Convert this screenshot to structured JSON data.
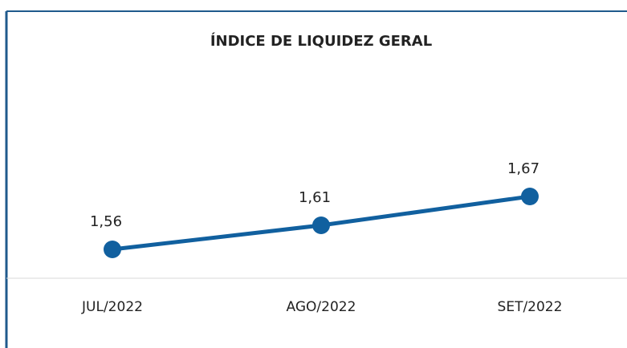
{
  "chart_data": {
    "type": "line",
    "title": "ÍNDICE DE LIQUIDEZ GERAL",
    "categories": [
      "JUL/2022",
      "AGO/2022",
      "SET/2022"
    ],
    "series": [
      {
        "name": "Índice de Liquidez Geral",
        "color": "#11609f",
        "values": [
          1.56,
          1.61,
          1.67
        ],
        "value_labels": [
          "1,56",
          "1,61",
          "1,67"
        ]
      }
    ],
    "ylim": [
      1.5,
      1.75
    ]
  }
}
